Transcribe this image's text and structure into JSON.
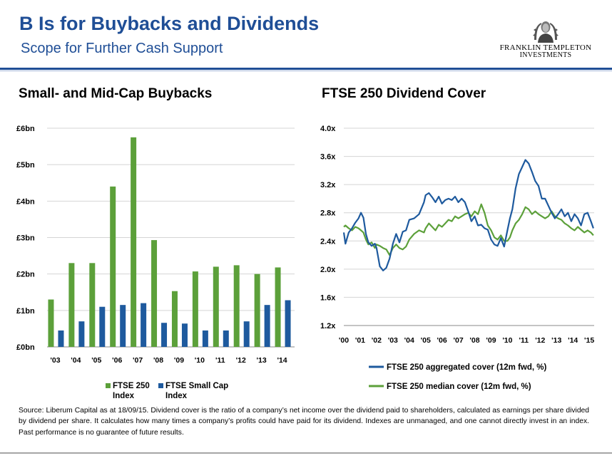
{
  "header": {
    "title": "B Is for Buybacks and Dividends",
    "subtitle": "Scope for Further Cash Support",
    "logo_line1": "FRANKLIN TEMPLETON",
    "logo_line2": "INVESTMENTS"
  },
  "colors": {
    "brand_blue": "#1f4e96",
    "green": "#5ca03a",
    "navy": "#1e5a9e"
  },
  "chart_data": [
    {
      "type": "bar",
      "title": "Small- and Mid-Cap Buybacks",
      "categories": [
        "'03",
        "'04",
        "'05",
        "'06",
        "'07",
        "'08",
        "'09",
        "'10",
        "'11",
        "'12",
        "'13",
        "'14"
      ],
      "series": [
        {
          "name": "FTSE 250 Index",
          "color": "#5ca03a",
          "values": [
            1.3,
            2.3,
            2.3,
            4.4,
            5.75,
            2.93,
            1.53,
            2.07,
            2.2,
            2.24,
            2.0,
            2.18
          ]
        },
        {
          "name": "FTSE Small Cap Index",
          "color": "#1e5a9e",
          "values": [
            0.45,
            0.7,
            1.1,
            1.15,
            1.2,
            0.66,
            0.64,
            0.45,
            0.45,
            0.7,
            1.15,
            1.28
          ]
        }
      ],
      "yticks": [
        "£0bn",
        "£1bn",
        "£2bn",
        "£3bn",
        "£4bn",
        "£5bn",
        "£6bn"
      ],
      "ylim": [
        0,
        6
      ],
      "grid": true,
      "legend": [
        "FTSE 250 Index",
        "FTSE Small Cap Index"
      ],
      "legend_position": "bottom"
    },
    {
      "type": "line",
      "title": "FTSE 250 Dividend Cover",
      "xticks": [
        "'00",
        "'01",
        "'02",
        "'03",
        "'04",
        "'05",
        "'06",
        "'07",
        "'08",
        "'09",
        "'10",
        "'11",
        "'12",
        "'13",
        "'14",
        "'15"
      ],
      "yticks": [
        "1.2x",
        "1.6x",
        "2.0x",
        "2.4x",
        "2.8x",
        "3.2x",
        "3.6x",
        "4.0x"
      ],
      "ylim": [
        1.2,
        4.0
      ],
      "xlim": [
        2000,
        2015.3
      ],
      "grid": true,
      "legend_position": "bottom",
      "series": [
        {
          "name": "FTSE 250 aggregated cover (12m fwd, %)",
          "color": "#1e5a9e",
          "x": [
            2000.0,
            2000.1,
            2000.3,
            2000.5,
            2000.7,
            2000.9,
            2001.05,
            2001.2,
            2001.35,
            2001.5,
            2001.7,
            2001.9,
            2002.0,
            2002.2,
            2002.4,
            2002.6,
            2002.8,
            2003.0,
            2003.2,
            2003.4,
            2003.6,
            2003.8,
            2004.0,
            2004.3,
            2004.6,
            2004.9,
            2005.0,
            2005.2,
            2005.4,
            2005.6,
            2005.8,
            2006.0,
            2006.2,
            2006.4,
            2006.6,
            2006.8,
            2007.0,
            2007.2,
            2007.4,
            2007.6,
            2007.8,
            2008.0,
            2008.2,
            2008.4,
            2008.6,
            2008.8,
            2009.0,
            2009.2,
            2009.4,
            2009.6,
            2009.8,
            2010.0,
            2010.15,
            2010.3,
            2010.5,
            2010.7,
            2010.9,
            2011.1,
            2011.3,
            2011.5,
            2011.7,
            2011.9,
            2012.1,
            2012.3,
            2012.5,
            2012.7,
            2012.9,
            2013.1,
            2013.3,
            2013.5,
            2013.7,
            2013.9,
            2014.1,
            2014.3,
            2014.5,
            2014.7,
            2014.9,
            2015.1,
            2015.25
          ],
          "y": [
            2.52,
            2.36,
            2.52,
            2.58,
            2.66,
            2.72,
            2.8,
            2.73,
            2.5,
            2.38,
            2.33,
            2.36,
            2.3,
            2.04,
            1.98,
            2.02,
            2.15,
            2.36,
            2.5,
            2.38,
            2.53,
            2.55,
            2.7,
            2.72,
            2.78,
            2.95,
            3.05,
            3.08,
            3.02,
            2.95,
            3.03,
            2.93,
            2.98,
            3.0,
            2.98,
            3.03,
            2.95,
            3.0,
            2.95,
            2.82,
            2.68,
            2.75,
            2.62,
            2.63,
            2.58,
            2.56,
            2.42,
            2.35,
            2.33,
            2.44,
            2.32,
            2.55,
            2.72,
            2.85,
            3.15,
            3.35,
            3.45,
            3.55,
            3.5,
            3.38,
            3.25,
            3.18,
            3.0,
            3.0,
            2.9,
            2.8,
            2.72,
            2.78,
            2.85,
            2.75,
            2.8,
            2.68,
            2.78,
            2.72,
            2.62,
            2.78,
            2.8,
            2.68,
            2.58
          ]
        },
        {
          "name": "FTSE 250 median cover (12m fwd, %)",
          "color": "#5ca03a",
          "x": [
            2000.0,
            2000.1,
            2000.3,
            2000.5,
            2000.7,
            2000.9,
            2001.05,
            2001.2,
            2001.35,
            2001.5,
            2001.7,
            2001.9,
            2002.0,
            2002.2,
            2002.4,
            2002.6,
            2002.8,
            2003.0,
            2003.2,
            2003.4,
            2003.6,
            2003.8,
            2004.0,
            2004.3,
            2004.6,
            2004.9,
            2005.0,
            2005.2,
            2005.4,
            2005.6,
            2005.8,
            2006.0,
            2006.2,
            2006.4,
            2006.6,
            2006.8,
            2007.0,
            2007.2,
            2007.4,
            2007.6,
            2007.8,
            2008.0,
            2008.2,
            2008.4,
            2008.6,
            2008.8,
            2009.0,
            2009.2,
            2009.4,
            2009.6,
            2009.8,
            2010.0,
            2010.15,
            2010.3,
            2010.5,
            2010.7,
            2010.9,
            2011.1,
            2011.3,
            2011.5,
            2011.7,
            2011.9,
            2012.1,
            2012.3,
            2012.5,
            2012.7,
            2012.9,
            2013.1,
            2013.3,
            2013.5,
            2013.7,
            2013.9,
            2014.1,
            2014.3,
            2014.5,
            2014.7,
            2014.9,
            2015.1,
            2015.25
          ],
          "y": [
            2.6,
            2.62,
            2.58,
            2.55,
            2.6,
            2.58,
            2.55,
            2.52,
            2.42,
            2.35,
            2.38,
            2.3,
            2.35,
            2.33,
            2.3,
            2.28,
            2.2,
            2.3,
            2.35,
            2.3,
            2.28,
            2.32,
            2.42,
            2.5,
            2.55,
            2.52,
            2.58,
            2.65,
            2.6,
            2.55,
            2.63,
            2.6,
            2.65,
            2.7,
            2.68,
            2.75,
            2.72,
            2.75,
            2.78,
            2.8,
            2.75,
            2.82,
            2.78,
            2.92,
            2.8,
            2.62,
            2.55,
            2.45,
            2.42,
            2.48,
            2.4,
            2.4,
            2.45,
            2.55,
            2.65,
            2.7,
            2.78,
            2.88,
            2.85,
            2.78,
            2.82,
            2.78,
            2.75,
            2.72,
            2.75,
            2.82,
            2.75,
            2.72,
            2.7,
            2.65,
            2.62,
            2.58,
            2.55,
            2.6,
            2.56,
            2.52,
            2.55,
            2.52,
            2.48
          ]
        }
      ]
    }
  ],
  "footer": {
    "source_note": "Source: Liberum Capital as at 18/09/15. Dividend cover is the ratio of a company’s net income over the dividend paid to shareholders, calculated as earnings per share divided by dividend per share. It calculates how many times a company’s profits could have paid for its dividend. Indexes are unmanaged, and one cannot directly invest in an index. Past performance is no guarantee of future results."
  }
}
